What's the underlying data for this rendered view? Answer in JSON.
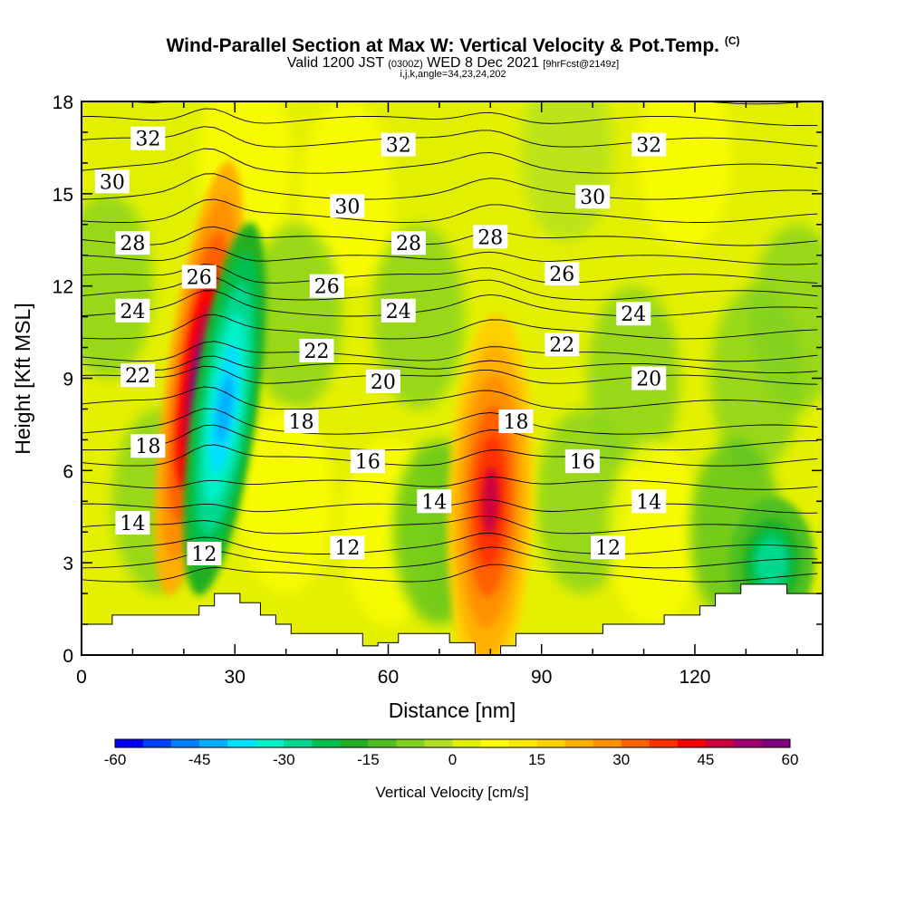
{
  "header": {
    "title": "Wind-Parallel Section at Max W: Vertical Velocity & Pot.Temp.",
    "copyright": "(C)",
    "valid_prefix": "Valid 1200 JST",
    "valid_utc": "(0300Z)",
    "valid_date": "WED 8 Dec 2021",
    "forecast": "[9hrFcst@2149z]",
    "params": "i,j,k,angle=34,23,24,202"
  },
  "chart_data": {
    "type": "heatmap",
    "title": "Wind-Parallel Section at Max W: Vertical Velocity & Pot.Temp.",
    "xlabel": "Distance [nm]",
    "ylabel": "Height [Kft MSL]",
    "xlim": [
      0,
      145
    ],
    "ylim": [
      0,
      18
    ],
    "x_ticks": [
      "0",
      "30",
      "60",
      "90",
      "120"
    ],
    "y_ticks": [
      "0",
      "3",
      "6",
      "9",
      "12",
      "15",
      "18"
    ],
    "x_tick_values": [
      0,
      30,
      60,
      90,
      120
    ],
    "y_tick_values": [
      0,
      3,
      6,
      9,
      12,
      15,
      18
    ],
    "colorbar": {
      "label": "Vertical Velocity [cm/s]",
      "range": [
        -60,
        60
      ],
      "tick_labels": [
        "-60",
        "-45",
        "-30",
        "-15",
        "0",
        "15",
        "30",
        "45",
        "60"
      ],
      "tick_values": [
        -60,
        -45,
        -30,
        -15,
        0,
        15,
        30,
        45,
        60
      ],
      "colors": [
        "#0000ff",
        "#0040ff",
        "#0080ff",
        "#00b0ff",
        "#00e0ff",
        "#00f0c8",
        "#00d890",
        "#00c050",
        "#20b020",
        "#50c020",
        "#80d020",
        "#b0e020",
        "#e0f000",
        "#ffff00",
        "#ffe800",
        "#ffd000",
        "#ffb000",
        "#ff9000",
        "#ff6000",
        "#ff3000",
        "#ff0000",
        "#d00040",
        "#a00070",
        "#800080"
      ]
    },
    "velocity_features": [
      {
        "type": "updraft",
        "x": 23,
        "z_center": 9,
        "peak_cm_s": 55
      },
      {
        "type": "downdraft",
        "x": 28,
        "z_center": 8,
        "peak_cm_s": -45
      },
      {
        "type": "updraft",
        "x": 80,
        "z_center": 5,
        "peak_cm_s": 45
      },
      {
        "type": "downdraft",
        "x": 135,
        "z_center": 3,
        "peak_cm_s": -30
      }
    ],
    "contour_labels": [
      {
        "text": "32",
        "x": 13,
        "z": 16.8
      },
      {
        "text": "32",
        "x": 62,
        "z": 16.6
      },
      {
        "text": "32",
        "x": 111,
        "z": 16.6
      },
      {
        "text": "30",
        "x": 6,
        "z": 15.4
      },
      {
        "text": "30",
        "x": 52,
        "z": 14.6
      },
      {
        "text": "30",
        "x": 100,
        "z": 14.9
      },
      {
        "text": "28",
        "x": 10,
        "z": 13.4
      },
      {
        "text": "28",
        "x": 64,
        "z": 13.4
      },
      {
        "text": "28",
        "x": 80,
        "z": 13.6
      },
      {
        "text": "26",
        "x": 23,
        "z": 12.3
      },
      {
        "text": "26",
        "x": 48,
        "z": 12
      },
      {
        "text": "26",
        "x": 94,
        "z": 12.4
      },
      {
        "text": "24",
        "x": 10,
        "z": 11.2
      },
      {
        "text": "24",
        "x": 62,
        "z": 11.2
      },
      {
        "text": "24",
        "x": 108,
        "z": 11.1
      },
      {
        "text": "22",
        "x": 11,
        "z": 9.1
      },
      {
        "text": "22",
        "x": 46,
        "z": 9.9
      },
      {
        "text": "22",
        "x": 94,
        "z": 10.1
      },
      {
        "text": "20",
        "x": 59,
        "z": 8.9
      },
      {
        "text": "20",
        "x": 111,
        "z": 9
      },
      {
        "text": "18",
        "x": 13,
        "z": 6.8
      },
      {
        "text": "18",
        "x": 43,
        "z": 7.6
      },
      {
        "text": "18",
        "x": 85,
        "z": 7.6
      },
      {
        "text": "16",
        "x": 56,
        "z": 6.3
      },
      {
        "text": "16",
        "x": 98,
        "z": 6.3
      },
      {
        "text": "14",
        "x": 10,
        "z": 4.3
      },
      {
        "text": "14",
        "x": 69,
        "z": 5
      },
      {
        "text": "14",
        "x": 111,
        "z": 5
      },
      {
        "text": "12",
        "x": 24,
        "z": 3.3
      },
      {
        "text": "12",
        "x": 52,
        "z": 3.5
      },
      {
        "text": "12",
        "x": 103,
        "z": 3.5
      }
    ],
    "terrain": [
      [
        0,
        1
      ],
      [
        6,
        1
      ],
      [
        6,
        1.3
      ],
      [
        23,
        1.3
      ],
      [
        23,
        1.6
      ],
      [
        26,
        1.6
      ],
      [
        26,
        2
      ],
      [
        31,
        2
      ],
      [
        31,
        1.7
      ],
      [
        35,
        1.7
      ],
      [
        35,
        1.3
      ],
      [
        38,
        1.3
      ],
      [
        38,
        1
      ],
      [
        41,
        1
      ],
      [
        41,
        0.7
      ],
      [
        55,
        0.7
      ],
      [
        55,
        0.3
      ],
      [
        58,
        0.3
      ],
      [
        58,
        0.4
      ],
      [
        62,
        0.4
      ],
      [
        62,
        0.7
      ],
      [
        72,
        0.7
      ],
      [
        72,
        0.4
      ],
      [
        77,
        0.4
      ],
      [
        77,
        0
      ],
      [
        82,
        0
      ],
      [
        82,
        0.3
      ],
      [
        85,
        0.3
      ],
      [
        85,
        0.7
      ],
      [
        102,
        0.7
      ],
      [
        102,
        1
      ],
      [
        114,
        1
      ],
      [
        114,
        1.3
      ],
      [
        121,
        1.3
      ],
      [
        121,
        1.6
      ],
      [
        124,
        1.6
      ],
      [
        124,
        2
      ],
      [
        129,
        2
      ],
      [
        129,
        2.3
      ],
      [
        138,
        2.3
      ],
      [
        138,
        2
      ],
      [
        145,
        2
      ]
    ]
  }
}
